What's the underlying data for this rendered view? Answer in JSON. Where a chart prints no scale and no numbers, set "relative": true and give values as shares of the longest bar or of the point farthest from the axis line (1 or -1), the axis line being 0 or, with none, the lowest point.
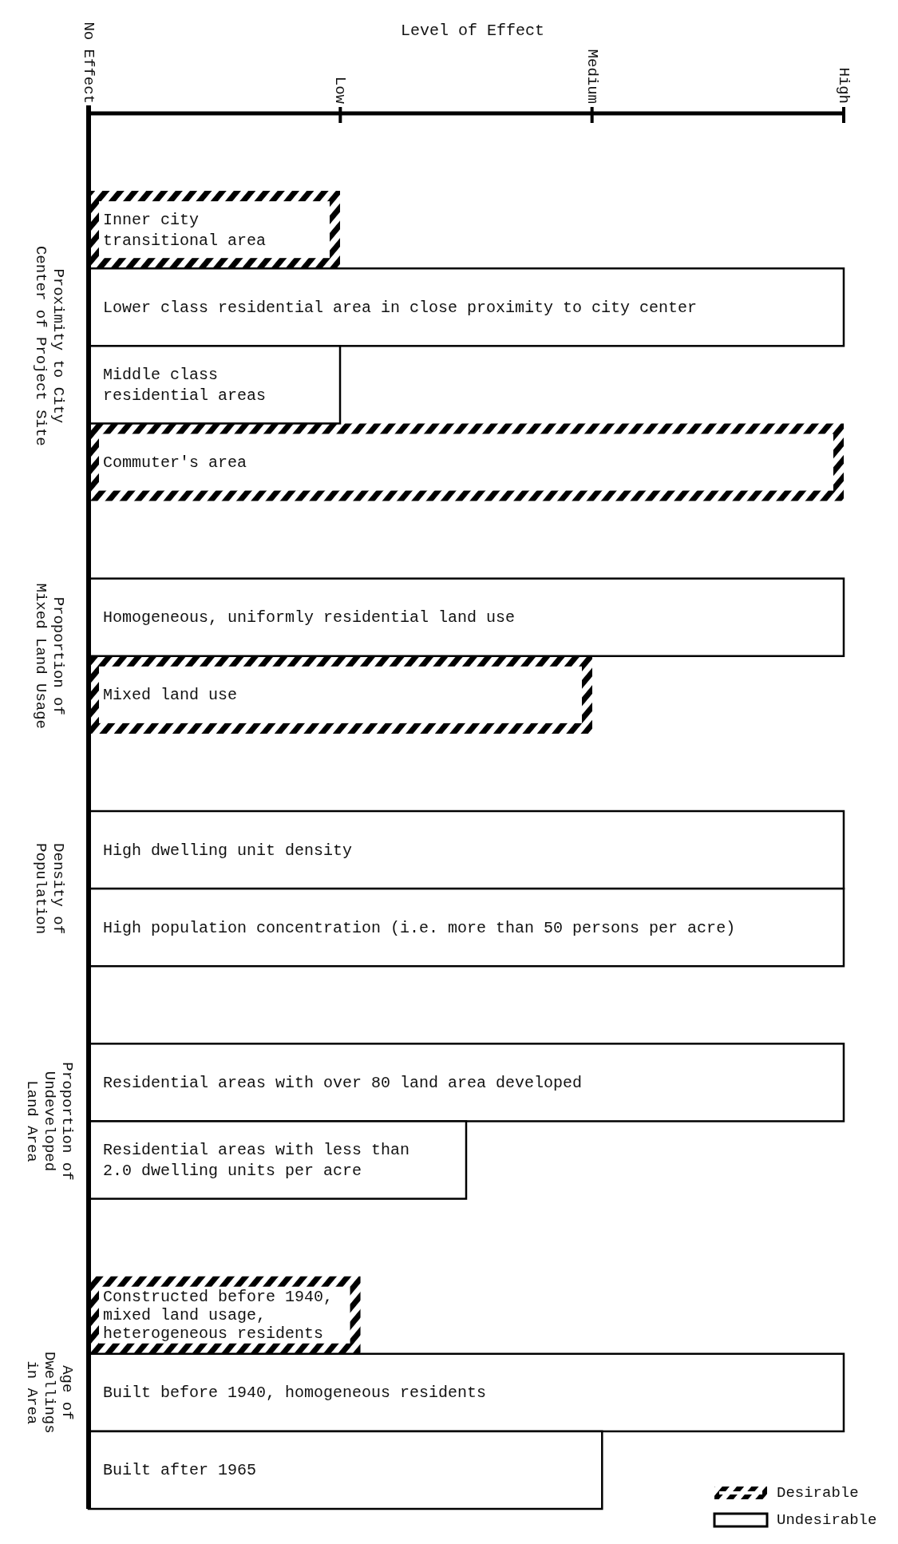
{
  "chart_data": {
    "type": "bar",
    "orientation": "horizontal",
    "xlabel": "Level of Effect",
    "categories": [
      null,
      "Inner city\ntransitional area",
      "Lower class residential area in close proximity to city center",
      "Middle class\nresidential areas",
      "Commuter's area",
      null,
      "Homogeneous, uniformly residential land use",
      "Mixed land use",
      null,
      "High dwelling unit density",
      "High population concentration (i.e. more than 50 persons per acre)",
      null,
      "Residential areas with over 80  land area developed",
      "Residential areas with less than\n2.0 dwelling units per acre",
      null,
      "Constructed before 1940,\nmixed land usage,\nheterogeneous residents",
      "Built before 1940, homogeneous residents",
      "Built after 1965"
    ],
    "series": [
      {
        "name": "Desirable",
        "color": "#000000",
        "values": [
          null,
          0.333,
          null,
          null,
          1,
          null,
          null,
          0.667,
          null,
          null,
          null,
          null,
          null,
          null,
          null,
          0.36,
          null,
          null
        ]
      },
      {
        "name": "Undesirable",
        "color": "#ffffff",
        "values": [
          null,
          null,
          1,
          0.333,
          null,
          null,
          1,
          null,
          null,
          1,
          1,
          null,
          1,
          0.5,
          null,
          null,
          1,
          0.68
        ]
      }
    ],
    "relative": true,
    "annotations": [
      "No Effect",
      "Low",
      "Medium",
      "High",
      "Proximity to City\nCenter of Project Site",
      "Proportion of\nMixed Land Usage",
      "Density of\nPopulation",
      "Proportion of\nUndeveloped\nLand Area",
      "Age of\nDwellings\nin Area"
    ],
    "legend": "bottom right"
  }
}
